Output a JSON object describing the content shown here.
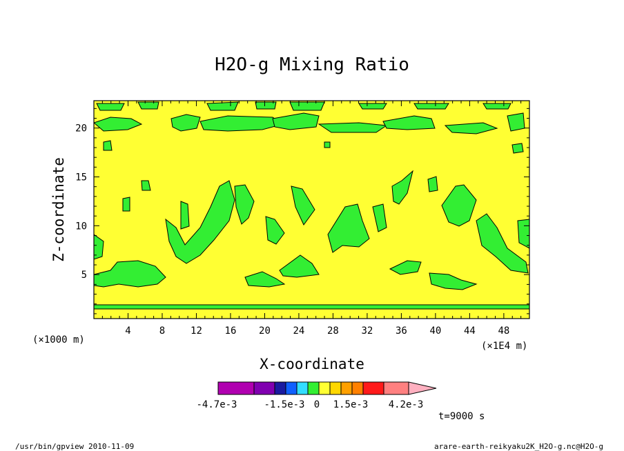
{
  "chart_data": {
    "type": "contour",
    "title": "H2O-g Mixing Ratio",
    "xlabel": "X-coordinate",
    "ylabel": "Z-coordinate",
    "x_unit_left": "(×1000 m)",
    "x_unit_right": "(×1E4 m)",
    "xlim": [
      0,
      51
    ],
    "ylim": [
      0.5,
      22.8
    ],
    "x_ticks": [
      4,
      8,
      12,
      16,
      20,
      24,
      28,
      32,
      36,
      40,
      44,
      48
    ],
    "y_ticks": [
      5,
      10,
      15,
      20
    ],
    "background_level_color": "#ffff33",
    "anomaly_color": "#33ee33",
    "colorbar": {
      "colors": [
        "#b000b0",
        "#8000b0",
        "#1a1aa0",
        "#1060ff",
        "#33ddff",
        "#33ee33",
        "#ffff33",
        "#ffd700",
        "#ffa000",
        "#ff8000",
        "#ff1a1a",
        "#ff8080",
        "#ffb0c0"
      ],
      "labels": [
        "-4.7e-3",
        "-1.5e-3",
        "0",
        "1.5e-3",
        "4.2e-3"
      ]
    },
    "green_regions": [
      {
        "z_center": 4.5,
        "desc": "low-level patches",
        "x_ranges": [
          [
            0,
            8.5
          ],
          [
            18.5,
            22.5
          ],
          [
            23,
            26.5
          ],
          [
            39.5,
            44.5
          ]
        ]
      },
      {
        "z_center": 1.3,
        "desc": "near-surface band",
        "x_ranges": [
          [
            0,
            51
          ]
        ]
      },
      {
        "z_center": 20.2,
        "desc": "upper band",
        "x_ranges": [
          [
            0,
            51
          ]
        ]
      }
    ]
  },
  "footer": {
    "time": "t=9000 s",
    "program": "/usr/bin/gpview  2010-11-09",
    "file": "arare-earth-reikyaku2K_H2O-g.nc@H2O-g"
  }
}
